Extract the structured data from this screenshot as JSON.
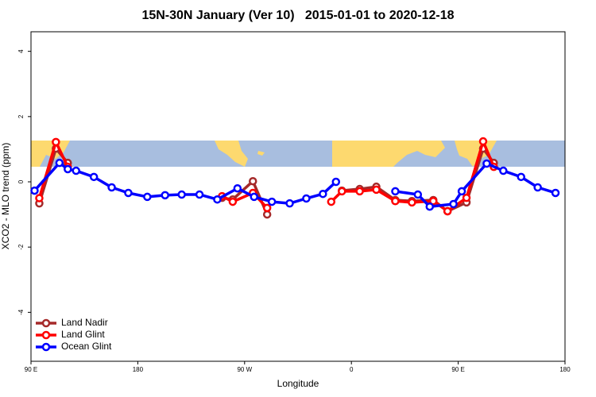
{
  "chart_data": {
    "type": "line",
    "title": "15N-30N January (Ver 10)   2015-01-01 to 2020-12-18",
    "x_label": "Longitude",
    "y_label": "XCO2 - MLO trend (ppm)",
    "xlim": [
      90,
      540
    ],
    "ylim": [
      -5.5,
      4.6
    ],
    "xticks": [
      {
        "value": 90,
        "label": "90 E"
      },
      180,
      {
        "value": 270,
        "label": "90 W"
      },
      {
        "value": 360,
        "label": "0"
      },
      {
        "value": 450,
        "label": "90 E"
      },
      {
        "value": 540,
        "label": "180"
      }
    ],
    "yticks": [
      -4,
      -2,
      0,
      2,
      4
    ],
    "grid": false,
    "legend": "bottom-left",
    "series": [
      {
        "name": "Land Nadir",
        "color": "#a52a2a",
        "x": [
          97,
          111,
          121,
          186,
          251,
          260,
          277,
          289,
          320,
          352,
          367,
          381,
          397,
          411,
          429,
          441,
          457,
          471,
          480
        ],
        "values": [
          -0.66,
          1.02,
          0.58,
          null,
          -0.49,
          -0.54,
          0.02,
          -1.0,
          null,
          -0.27,
          -0.22,
          -0.15,
          -0.56,
          -0.59,
          -0.56,
          -0.9,
          -0.63,
          1.02,
          0.58
        ]
      },
      {
        "name": "Land Glint",
        "color": "#ff0000",
        "x": [
          97,
          111,
          121,
          186,
          251,
          260,
          277,
          289,
          316,
          343,
          352,
          367,
          381,
          397,
          411,
          429,
          441,
          457,
          471,
          480
        ],
        "values": [
          -0.5,
          1.22,
          0.46,
          null,
          -0.44,
          -0.61,
          -0.34,
          -0.8,
          null,
          -0.61,
          -0.29,
          -0.29,
          -0.24,
          -0.59,
          -0.63,
          -0.59,
          -0.9,
          -0.49,
          1.24,
          0.46
        ]
      },
      {
        "name": "Ocean Glint",
        "color": "#0000ff",
        "x": [
          93,
          114,
          121,
          128,
          143,
          158,
          172,
          188,
          203,
          217,
          232,
          247,
          264,
          278,
          293,
          308,
          322,
          336,
          347,
          372,
          397,
          416,
          426,
          446,
          453,
          474,
          488,
          503,
          517,
          532
        ],
        "values": [
          -0.27,
          0.58,
          0.39,
          0.34,
          0.15,
          -0.17,
          -0.34,
          -0.46,
          -0.41,
          -0.39,
          -0.39,
          -0.54,
          -0.2,
          -0.46,
          -0.61,
          -0.66,
          -0.51,
          -0.37,
          0.0,
          null,
          -0.29,
          -0.39,
          -0.76,
          -0.68,
          -0.29,
          0.56,
          0.34,
          0.15,
          -0.17,
          -0.34
        ]
      }
    ]
  }
}
